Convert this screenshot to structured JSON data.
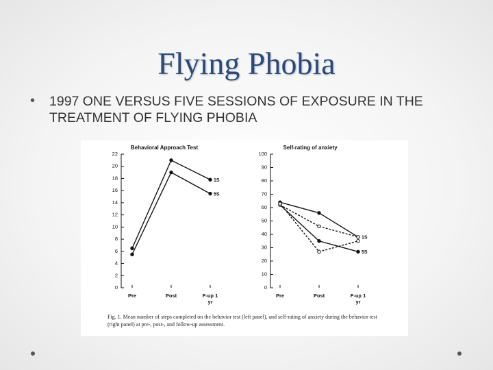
{
  "title": "Flying Phobia",
  "bullet": "1997 ONE VERSUS FIVE SESSIONS OF EXPOSURE IN THE TREATMENT OF FLYING PHOBIA",
  "caption": "Fig. 1. Mean number of steps completed on the behavior test (left panel), and self-rating of anxiety during the behavior test (right panel) at pre-, post-, and follow-up assessment.",
  "chart_data": [
    {
      "type": "line",
      "title": "Behavioral Approach Test",
      "categories": [
        "Pre",
        "Post",
        "F-up 1 yr"
      ],
      "ylim": [
        0,
        22
      ],
      "yticks": [
        0,
        2,
        4,
        6,
        8,
        10,
        12,
        14,
        16,
        18,
        20,
        22
      ],
      "series": [
        {
          "name": "1S",
          "color": "#111111",
          "dashed": false,
          "marker": "filled",
          "values": [
            6.5,
            21,
            17.8
          ]
        },
        {
          "name": "5S",
          "color": "#111111",
          "dashed": false,
          "marker": "filled",
          "values": [
            5.5,
            19,
            15.5
          ]
        }
      ]
    },
    {
      "type": "line",
      "title": "Self-rating of anxiety",
      "categories": [
        "Pre",
        "Post",
        "F-up 1 yr"
      ],
      "ylim": [
        0,
        100
      ],
      "yticks": [
        0,
        10,
        20,
        30,
        40,
        50,
        60,
        70,
        80,
        90,
        100
      ],
      "series": [
        {
          "name": "1S",
          "color": "#111111",
          "dashed": false,
          "marker": "filled",
          "values": [
            64,
            56,
            38
          ]
        },
        {
          "name": "5S",
          "color": "#111111",
          "dashed": false,
          "marker": "filled",
          "values": [
            62,
            35,
            27
          ]
        },
        {
          "color": "#111111",
          "dashed": true,
          "marker": "open",
          "values": [
            62,
            46,
            38
          ]
        },
        {
          "color": "#111111",
          "dashed": true,
          "marker": "open",
          "values": [
            63,
            27,
            35
          ]
        }
      ]
    }
  ]
}
